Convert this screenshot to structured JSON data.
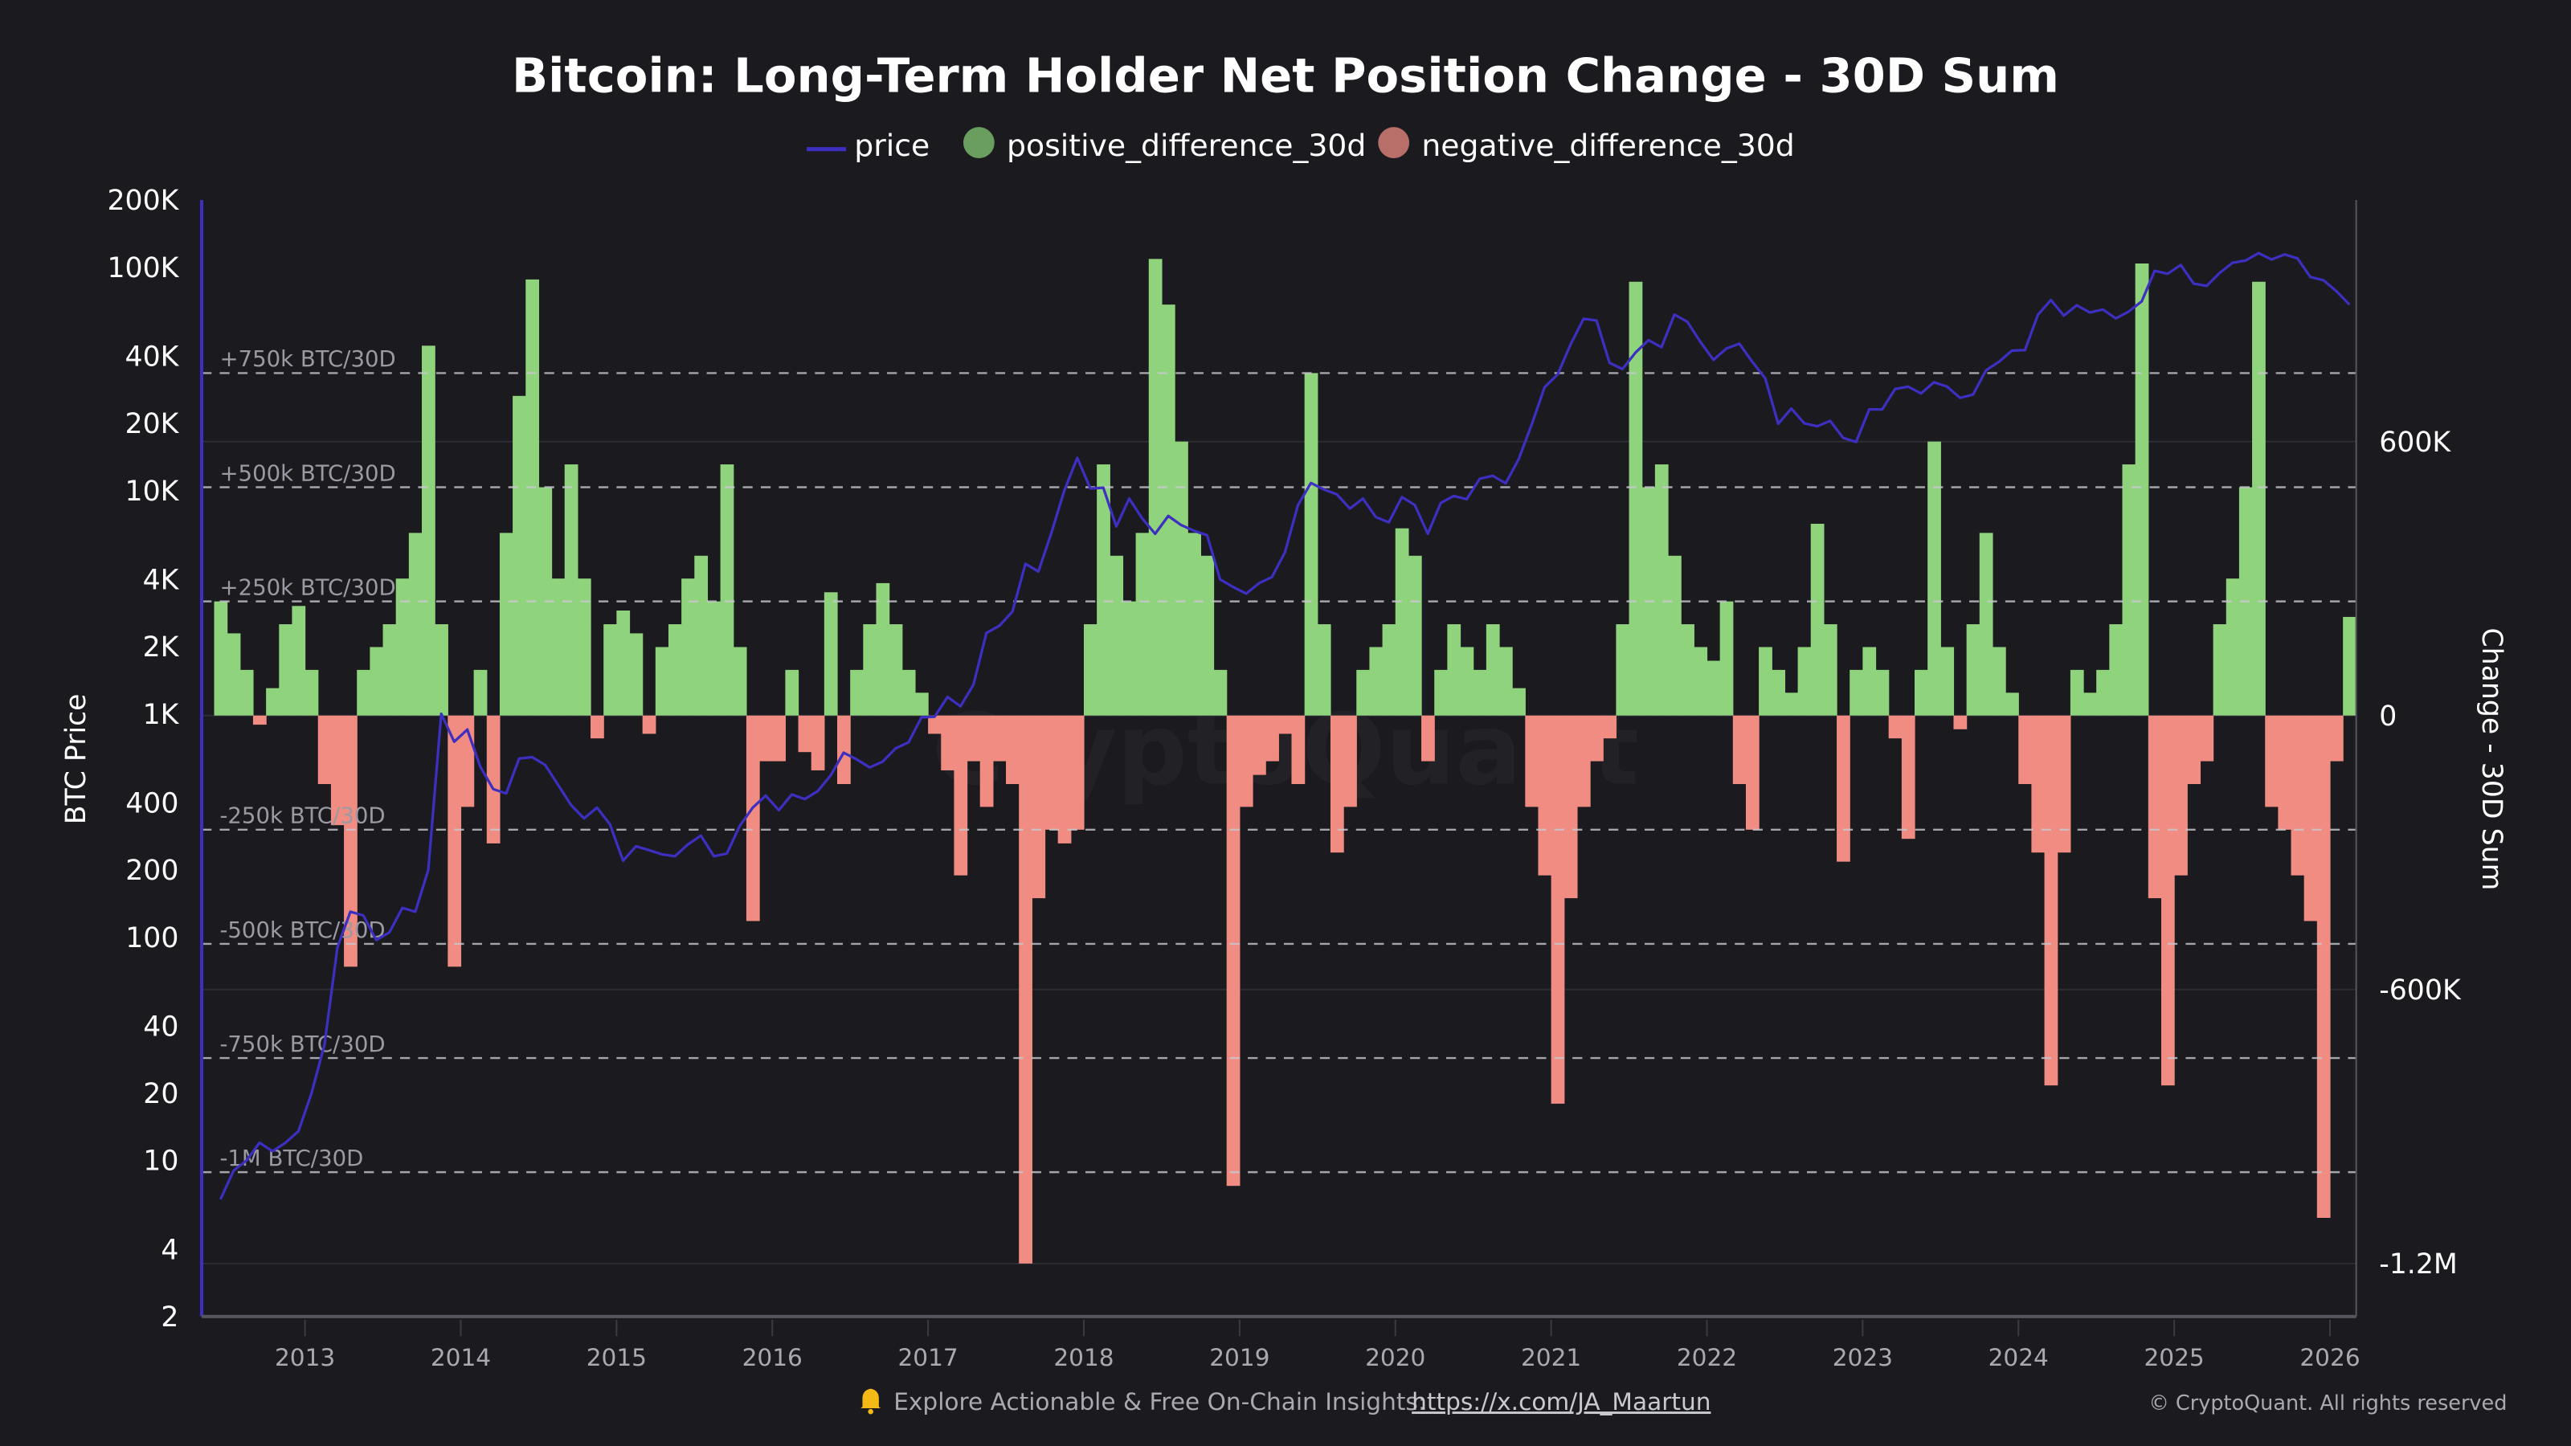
{
  "colors": {
    "background": "#1a1a1f",
    "price": "#3d2fbf",
    "positive": "#8fd37d",
    "negative": "#f08c82",
    "legend_positive": "#6a9e5f",
    "legend_negative": "#b86f6a",
    "reference_line": "#c8c8cf"
  },
  "legend": {
    "items": [
      {
        "label": "price",
        "marker": "line"
      },
      {
        "label": "positive_difference_30d",
        "marker": "dot"
      },
      {
        "label": "negative_difference_30d",
        "marker": "dot"
      }
    ]
  },
  "footer": {
    "icon": "bell-icon",
    "text": "Explore Actionable & Free On-Chain Insights:",
    "link": "https://x.com/JA_Maartun",
    "copyright": "© CryptoQuant. All rights reserved",
    "watermark": "CryptoQuant"
  },
  "chart_data": {
    "type": "bar+line",
    "title": "Bitcoin: Long-Term Holder Net Position Change - 30D Sum",
    "ylabel_left": "BTC Price",
    "ylabel_right": "Change - 30D Sum",
    "left_axis": {
      "scale": "log",
      "range": [
        2,
        200000
      ],
      "ticks": [
        {
          "v": 200000,
          "label": "200K"
        },
        {
          "v": 100000,
          "label": "100K"
        },
        {
          "v": 40000,
          "label": "40K"
        },
        {
          "v": 20000,
          "label": "20K"
        },
        {
          "v": 10000,
          "label": "10K"
        },
        {
          "v": 4000,
          "label": "4K"
        },
        {
          "v": 2000,
          "label": "2K"
        },
        {
          "v": 1000,
          "label": "1K"
        },
        {
          "v": 400,
          "label": "400"
        },
        {
          "v": 200,
          "label": "200"
        },
        {
          "v": 100,
          "label": "100"
        },
        {
          "v": 40,
          "label": "40"
        },
        {
          "v": 20,
          "label": "20"
        },
        {
          "v": 10,
          "label": "10"
        },
        {
          "v": 4,
          "label": "4"
        },
        {
          "v": 2,
          "label": "2"
        }
      ]
    },
    "right_axis": {
      "scale": "linear",
      "range": [
        -1316000,
        1129000
      ],
      "ticks": [
        {
          "v": 600000,
          "label": "600K"
        },
        {
          "v": 0,
          "label": "0"
        },
        {
          "v": -600000,
          "label": "-600K"
        },
        {
          "v": -1200000,
          "label": "-1.2M"
        }
      ]
    },
    "x_ticks": [
      "2013",
      "2014",
      "2015",
      "2016",
      "2017",
      "2018",
      "2019",
      "2020",
      "2021",
      "2022",
      "2023",
      "2024",
      "2025",
      "2026"
    ],
    "reference_lines": [
      {
        "v": 750000,
        "label": "+750k BTC/30D"
      },
      {
        "v": 500000,
        "label": "+500k BTC/30D"
      },
      {
        "v": 250000,
        "label": "+250k BTC/30D"
      },
      {
        "v": -250000,
        "label": "-250k BTC/30D"
      },
      {
        "v": -500000,
        "label": "-500k BTC/30D"
      },
      {
        "v": -750000,
        "label": "-750k BTC/30D"
      },
      {
        "v": -1000000,
        "label": "-1M BTC/30D"
      }
    ],
    "grid": true,
    "legend_position": "top",
    "price": [
      [
        "2012-06",
        6.7
      ],
      [
        "2012-07",
        9
      ],
      [
        "2012-08",
        10
      ],
      [
        "2012-09",
        12
      ],
      [
        "2012-10",
        11
      ],
      [
        "2012-11",
        12
      ],
      [
        "2012-12",
        13.5
      ],
      [
        "2013-01",
        20
      ],
      [
        "2013-02",
        33
      ],
      [
        "2013-03",
        90
      ],
      [
        "2013-04",
        130
      ],
      [
        "2013-05",
        125
      ],
      [
        "2013-06",
        97
      ],
      [
        "2013-07",
        105
      ],
      [
        "2013-08",
        135
      ],
      [
        "2013-09",
        130
      ],
      [
        "2013-10",
        200
      ],
      [
        "2013-11",
        1000
      ],
      [
        "2013-12",
        750
      ],
      [
        "2014-01",
        850
      ],
      [
        "2014-02",
        580
      ],
      [
        "2014-03",
        460
      ],
      [
        "2014-04",
        440
      ],
      [
        "2014-05",
        630
      ],
      [
        "2014-06",
        640
      ],
      [
        "2014-07",
        590
      ],
      [
        "2014-08",
        480
      ],
      [
        "2014-09",
        390
      ],
      [
        "2014-10",
        340
      ],
      [
        "2014-11",
        380
      ],
      [
        "2014-12",
        320
      ],
      [
        "2015-01",
        220
      ],
      [
        "2015-02",
        255
      ],
      [
        "2015-03",
        245
      ],
      [
        "2015-04",
        235
      ],
      [
        "2015-05",
        230
      ],
      [
        "2015-06",
        260
      ],
      [
        "2015-07",
        285
      ],
      [
        "2015-08",
        230
      ],
      [
        "2015-09",
        237
      ],
      [
        "2015-10",
        315
      ],
      [
        "2015-11",
        380
      ],
      [
        "2015-12",
        430
      ],
      [
        "2016-01",
        370
      ],
      [
        "2016-02",
        435
      ],
      [
        "2016-03",
        415
      ],
      [
        "2016-04",
        450
      ],
      [
        "2016-05",
        530
      ],
      [
        "2016-06",
        670
      ],
      [
        "2016-07",
        625
      ],
      [
        "2016-08",
        575
      ],
      [
        "2016-09",
        610
      ],
      [
        "2016-10",
        700
      ],
      [
        "2016-11",
        745
      ],
      [
        "2016-12",
        965
      ],
      [
        "2017-01",
        970
      ],
      [
        "2017-02",
        1190
      ],
      [
        "2017-03",
        1080
      ],
      [
        "2017-04",
        1350
      ],
      [
        "2017-05",
        2300
      ],
      [
        "2017-06",
        2480
      ],
      [
        "2017-07",
        2870
      ],
      [
        "2017-08",
        4700
      ],
      [
        "2017-09",
        4340
      ],
      [
        "2017-10",
        6450
      ],
      [
        "2017-11",
        10000
      ],
      [
        "2017-12",
        14000
      ],
      [
        "2018-01",
        10200
      ],
      [
        "2018-02",
        10300
      ],
      [
        "2018-03",
        6900
      ],
      [
        "2018-04",
        9200
      ],
      [
        "2018-05",
        7500
      ],
      [
        "2018-06",
        6400
      ],
      [
        "2018-07",
        7700
      ],
      [
        "2018-08",
        7000
      ],
      [
        "2018-09",
        6600
      ],
      [
        "2018-10",
        6300
      ],
      [
        "2018-11",
        4000
      ],
      [
        "2018-12",
        3700
      ],
      [
        "2019-01",
        3450
      ],
      [
        "2019-02",
        3850
      ],
      [
        "2019-03",
        4100
      ],
      [
        "2019-04",
        5300
      ],
      [
        "2019-05",
        8600
      ],
      [
        "2019-06",
        10800
      ],
      [
        "2019-07",
        10100
      ],
      [
        "2019-08",
        9600
      ],
      [
        "2019-09",
        8300
      ],
      [
        "2019-10",
        9200
      ],
      [
        "2019-11",
        7600
      ],
      [
        "2019-12",
        7200
      ],
      [
        "2020-01",
        9350
      ],
      [
        "2020-02",
        8600
      ],
      [
        "2020-03",
        6400
      ],
      [
        "2020-04",
        8800
      ],
      [
        "2020-05",
        9450
      ],
      [
        "2020-06",
        9140
      ],
      [
        "2020-07",
        11300
      ],
      [
        "2020-08",
        11650
      ],
      [
        "2020-09",
        10780
      ],
      [
        "2020-10",
        13800
      ],
      [
        "2020-11",
        19700
      ],
      [
        "2020-12",
        29000
      ],
      [
        "2021-01",
        33100
      ],
      [
        "2021-02",
        45200
      ],
      [
        "2021-03",
        58800
      ],
      [
        "2021-04",
        57700
      ],
      [
        "2021-05",
        37300
      ],
      [
        "2021-06",
        35000
      ],
      [
        "2021-07",
        41500
      ],
      [
        "2021-08",
        47100
      ],
      [
        "2021-09",
        43800
      ],
      [
        "2021-10",
        61300
      ],
      [
        "2021-11",
        57000
      ],
      [
        "2021-12",
        46300
      ],
      [
        "2022-01",
        38500
      ],
      [
        "2022-02",
        43200
      ],
      [
        "2022-03",
        45500
      ],
      [
        "2022-04",
        37700
      ],
      [
        "2022-05",
        31800
      ],
      [
        "2022-06",
        19900
      ],
      [
        "2022-07",
        23300
      ],
      [
        "2022-08",
        20000
      ],
      [
        "2022-09",
        19400
      ],
      [
        "2022-10",
        20500
      ],
      [
        "2022-11",
        17200
      ],
      [
        "2022-12",
        16500
      ],
      [
        "2023-01",
        23100
      ],
      [
        "2023-02",
        23100
      ],
      [
        "2023-03",
        28500
      ],
      [
        "2023-04",
        29200
      ],
      [
        "2023-05",
        27200
      ],
      [
        "2023-06",
        30500
      ],
      [
        "2023-07",
        29200
      ],
      [
        "2023-08",
        26000
      ],
      [
        "2023-09",
        26900
      ],
      [
        "2023-10",
        34500
      ],
      [
        "2023-11",
        37700
      ],
      [
        "2023-12",
        42300
      ],
      [
        "2024-01",
        42600
      ],
      [
        "2024-02",
        61200
      ],
      [
        "2024-03",
        71300
      ],
      [
        "2024-04",
        60700
      ],
      [
        "2024-05",
        67500
      ],
      [
        "2024-06",
        62700
      ],
      [
        "2024-07",
        64600
      ],
      [
        "2024-08",
        59000
      ],
      [
        "2024-09",
        63300
      ],
      [
        "2024-10",
        70300
      ],
      [
        "2024-11",
        96400
      ],
      [
        "2024-12",
        93400
      ],
      [
        "2025-01",
        102400
      ],
      [
        "2025-02",
        84400
      ],
      [
        "2025-03",
        82500
      ],
      [
        "2025-04",
        94200
      ],
      [
        "2025-05",
        104600
      ],
      [
        "2025-06",
        107100
      ],
      [
        "2025-07",
        115700
      ],
      [
        "2025-08",
        108200
      ],
      [
        "2025-09",
        114000
      ],
      [
        "2025-10",
        109500
      ],
      [
        "2025-11",
        90400
      ],
      [
        "2025-12",
        87500
      ],
      [
        "2026-01",
        78000
      ],
      [
        "2026-02",
        68000
      ]
    ],
    "net_position_change_30d": [
      [
        "2012-06",
        250000
      ],
      [
        "2012-07",
        180000
      ],
      [
        "2012-08",
        100000
      ],
      [
        "2012-09",
        -20000
      ],
      [
        "2012-10",
        60000
      ],
      [
        "2012-11",
        200000
      ],
      [
        "2012-12",
        240000
      ],
      [
        "2013-01",
        100000
      ],
      [
        "2013-02",
        -150000
      ],
      [
        "2013-03",
        -240000
      ],
      [
        "2013-04",
        -550000
      ],
      [
        "2013-05",
        100000
      ],
      [
        "2013-06",
        150000
      ],
      [
        "2013-07",
        200000
      ],
      [
        "2013-08",
        300000
      ],
      [
        "2013-09",
        400000
      ],
      [
        "2013-10",
        810000
      ],
      [
        "2013-11",
        200000
      ],
      [
        "2013-12",
        -550000
      ],
      [
        "2014-01",
        -200000
      ],
      [
        "2014-02",
        100000
      ],
      [
        "2014-03",
        -280000
      ],
      [
        "2014-04",
        400000
      ],
      [
        "2014-05",
        700000
      ],
      [
        "2014-06",
        955000
      ],
      [
        "2014-07",
        500000
      ],
      [
        "2014-08",
        300000
      ],
      [
        "2014-09",
        550000
      ],
      [
        "2014-10",
        300000
      ],
      [
        "2014-11",
        -50000
      ],
      [
        "2014-12",
        200000
      ],
      [
        "2015-01",
        230000
      ],
      [
        "2015-02",
        180000
      ],
      [
        "2015-03",
        -40000
      ],
      [
        "2015-04",
        150000
      ],
      [
        "2015-05",
        200000
      ],
      [
        "2015-06",
        300000
      ],
      [
        "2015-07",
        350000
      ],
      [
        "2015-08",
        250000
      ],
      [
        "2015-09",
        550000
      ],
      [
        "2015-10",
        150000
      ],
      [
        "2015-11",
        -450000
      ],
      [
        "2015-12",
        -100000
      ],
      [
        "2016-01",
        -100000
      ],
      [
        "2016-02",
        100000
      ],
      [
        "2016-03",
        -80000
      ],
      [
        "2016-04",
        -120000
      ],
      [
        "2016-05",
        270000
      ],
      [
        "2016-06",
        -150000
      ],
      [
        "2016-07",
        100000
      ],
      [
        "2016-08",
        200000
      ],
      [
        "2016-09",
        290000
      ],
      [
        "2016-10",
        200000
      ],
      [
        "2016-11",
        100000
      ],
      [
        "2016-12",
        50000
      ],
      [
        "2017-01",
        -40000
      ],
      [
        "2017-02",
        -120000
      ],
      [
        "2017-03",
        -350000
      ],
      [
        "2017-04",
        -100000
      ],
      [
        "2017-05",
        -200000
      ],
      [
        "2017-06",
        -100000
      ],
      [
        "2017-07",
        -150000
      ],
      [
        "2017-08",
        -1200000
      ],
      [
        "2017-09",
        -400000
      ],
      [
        "2017-10",
        -250000
      ],
      [
        "2017-11",
        -280000
      ],
      [
        "2017-12",
        -250000
      ],
      [
        "2018-01",
        200000
      ],
      [
        "2018-02",
        550000
      ],
      [
        "2018-03",
        350000
      ],
      [
        "2018-04",
        250000
      ],
      [
        "2018-05",
        400000
      ],
      [
        "2018-06",
        1000000
      ],
      [
        "2018-07",
        900000
      ],
      [
        "2018-08",
        600000
      ],
      [
        "2018-09",
        400000
      ],
      [
        "2018-10",
        350000
      ],
      [
        "2018-11",
        100000
      ],
      [
        "2018-12",
        -1030000
      ],
      [
        "2019-01",
        -200000
      ],
      [
        "2019-02",
        -130000
      ],
      [
        "2019-03",
        -100000
      ],
      [
        "2019-04",
        -40000
      ],
      [
        "2019-05",
        -150000
      ],
      [
        "2019-06",
        750000
      ],
      [
        "2019-07",
        200000
      ],
      [
        "2019-08",
        -300000
      ],
      [
        "2019-09",
        -200000
      ],
      [
        "2019-10",
        100000
      ],
      [
        "2019-11",
        150000
      ],
      [
        "2019-12",
        200000
      ],
      [
        "2020-01",
        410000
      ],
      [
        "2020-02",
        350000
      ],
      [
        "2020-03",
        -100000
      ],
      [
        "2020-04",
        100000
      ],
      [
        "2020-05",
        200000
      ],
      [
        "2020-06",
        150000
      ],
      [
        "2020-07",
        100000
      ],
      [
        "2020-08",
        200000
      ],
      [
        "2020-09",
        150000
      ],
      [
        "2020-10",
        60000
      ],
      [
        "2020-11",
        -200000
      ],
      [
        "2020-12",
        -350000
      ],
      [
        "2021-01",
        -850000
      ],
      [
        "2021-02",
        -400000
      ],
      [
        "2021-03",
        -200000
      ],
      [
        "2021-04",
        -100000
      ],
      [
        "2021-05",
        -50000
      ],
      [
        "2021-06",
        200000
      ],
      [
        "2021-07",
        950000
      ],
      [
        "2021-08",
        500000
      ],
      [
        "2021-09",
        550000
      ],
      [
        "2021-10",
        350000
      ],
      [
        "2021-11",
        200000
      ],
      [
        "2021-12",
        150000
      ],
      [
        "2022-01",
        120000
      ],
      [
        "2022-02",
        250000
      ],
      [
        "2022-03",
        -150000
      ],
      [
        "2022-04",
        -250000
      ],
      [
        "2022-05",
        150000
      ],
      [
        "2022-06",
        100000
      ],
      [
        "2022-07",
        50000
      ],
      [
        "2022-08",
        150000
      ],
      [
        "2022-09",
        420000
      ],
      [
        "2022-10",
        200000
      ],
      [
        "2022-11",
        -320000
      ],
      [
        "2022-12",
        100000
      ],
      [
        "2023-01",
        150000
      ],
      [
        "2023-02",
        100000
      ],
      [
        "2023-03",
        -50000
      ],
      [
        "2023-04",
        -270000
      ],
      [
        "2023-05",
        100000
      ],
      [
        "2023-06",
        600000
      ],
      [
        "2023-07",
        150000
      ],
      [
        "2023-08",
        -30000
      ],
      [
        "2023-09",
        200000
      ],
      [
        "2023-10",
        400000
      ],
      [
        "2023-11",
        150000
      ],
      [
        "2023-12",
        50000
      ],
      [
        "2024-01",
        -150000
      ],
      [
        "2024-02",
        -300000
      ],
      [
        "2024-03",
        -810000
      ],
      [
        "2024-04",
        -300000
      ],
      [
        "2024-05",
        100000
      ],
      [
        "2024-06",
        50000
      ],
      [
        "2024-07",
        100000
      ],
      [
        "2024-08",
        200000
      ],
      [
        "2024-09",
        550000
      ],
      [
        "2024-10",
        990000
      ],
      [
        "2024-11",
        -400000
      ],
      [
        "2024-12",
        -810000
      ],
      [
        "2025-01",
        -350000
      ],
      [
        "2025-02",
        -150000
      ],
      [
        "2025-03",
        -100000
      ],
      [
        "2025-04",
        200000
      ],
      [
        "2025-05",
        300000
      ],
      [
        "2025-06",
        500000
      ],
      [
        "2025-07",
        950000
      ],
      [
        "2025-08",
        -200000
      ],
      [
        "2025-09",
        -250000
      ],
      [
        "2025-10",
        -350000
      ],
      [
        "2025-11",
        -450000
      ],
      [
        "2025-12",
        -1100000
      ],
      [
        "2026-01",
        -100000
      ],
      [
        "2026-02",
        216000
      ]
    ]
  }
}
